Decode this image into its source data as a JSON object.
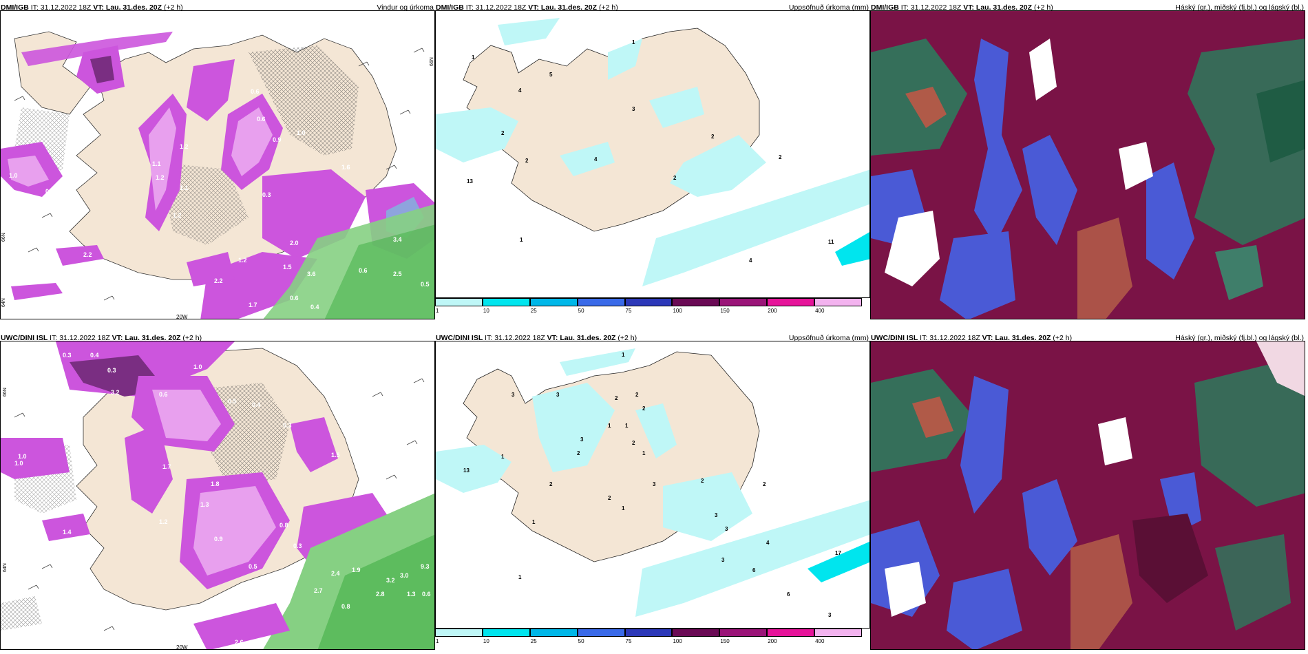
{
  "panels": [
    {
      "id": "top-left",
      "model": "DMI/IGB",
      "it_label": "IT:",
      "it_value": "31.12.2022 18Z",
      "vt_label": "VT: Lau. 31.des. 20Z",
      "lead": "(+2 h)",
      "product": "Vindur og úrkoma",
      "value_labels": [
        "1.0",
        "0.6",
        "1.6",
        "0.6",
        "1.0",
        "0.9",
        "1.2",
        "1.2",
        "1.1",
        "1.6",
        "1.1",
        "1.2",
        "0.3",
        "2.0",
        "3.4",
        "1.2",
        "1.5",
        "3.6",
        "2.5",
        "1.7",
        "2.2",
        "0.6",
        "0.4",
        "1.2",
        "0.5",
        "0.2",
        "1.0",
        "2.4",
        "2.2",
        "0.6"
      ],
      "lon_label": "20W",
      "lat_labels": [
        "66N",
        "66N",
        "64N"
      ]
    },
    {
      "id": "top-middle",
      "model": "DMI/IGB",
      "it_label": "IT:",
      "it_value": "31.12.2022 18Z",
      "vt_label": "VT: Lau. 31.des. 20Z",
      "lead": "(+2 h)",
      "product": "Uppsöfnuð úrkoma (mm)",
      "value_labels": [
        "1",
        "1",
        "4",
        "5",
        "3",
        "2",
        "2",
        "13",
        "4",
        "2",
        "2",
        "2",
        "11",
        "4",
        "1"
      ]
    },
    {
      "id": "top-right",
      "model": "DMI/IGB",
      "it_label": "IT:",
      "it_value": "31.12.2022 18Z",
      "vt_label": "VT: Lau. 31.des. 20Z",
      "lead": "(+2 h)",
      "product": "Háský (gr.), miðský (fj.bl.) og lágský (bl.)"
    },
    {
      "id": "bottom-left",
      "model": "UWC/DINI ISL",
      "it_label": "IT:",
      "it_value": "31.12.2022 18Z",
      "vt_label": "VT: Lau. 31.des. 20Z",
      "lead": "(+2 h)",
      "product": "",
      "value_labels": [
        "0.3",
        "0.4",
        "1.0",
        "0.3",
        "3.2",
        "0.6",
        "0.5",
        "0.4",
        "0.7",
        "0.3",
        "1.5",
        "1.8",
        "1.3",
        "1.0",
        "1.7",
        "1.2",
        "0.8",
        "0.9",
        "0.3",
        "1.9",
        "2.4",
        "2.7",
        "2.3",
        "2.8",
        "3.2",
        "3.0",
        "9.3",
        "0.6",
        "1.3",
        "2.6",
        "1.0",
        "1.4",
        "0.8",
        "0.5"
      ],
      "lon_label": "20W",
      "lat_labels": [
        "66N",
        "64N"
      ]
    },
    {
      "id": "bottom-middle",
      "model": "UWC/DINI ISL",
      "it_label": "IT:",
      "it_value": "31.12.2022 18Z",
      "vt_label": "VT: Lau. 31.des. 20Z",
      "lead": "(+2 h)",
      "product": "Uppsöfnuð úrkoma (mm)",
      "value_labels": [
        "1",
        "3",
        "3",
        "2",
        "2",
        "2",
        "1",
        "1",
        "3",
        "2",
        "2",
        "1",
        "13",
        "1",
        "2",
        "3",
        "2",
        "1",
        "2",
        "3",
        "1",
        "2",
        "3",
        "17",
        "4",
        "3",
        "6",
        "6",
        "3",
        "1"
      ]
    },
    {
      "id": "bottom-right",
      "model": "UWC/DINI ISL",
      "it_label": "IT:",
      "it_value": "31.12.2022 18Z",
      "vt_label": "VT: Lau. 31.des. 20Z",
      "lead": "(+2 h)",
      "product": "Háský (gr.), miðský (fj.bl.) og lágský (bl.)"
    }
  ],
  "colorbar": {
    "ticks": [
      "1",
      "10",
      "25",
      "50",
      "75",
      "100",
      "150",
      "200",
      "400"
    ],
    "colors": [
      "#bff7f7",
      "#00e5ee",
      "#00b7e8",
      "#3a6ae8",
      "#2c38b8",
      "#6a0a55",
      "#9a1478",
      "#e6149a",
      "#f3b3ef"
    ]
  },
  "legend_colors": {
    "land": "#f4e6d5",
    "precip_light": "#e8a0ee",
    "precip_mid": "#cc55dd",
    "precip_heavy": "#7a2e82",
    "snow_green": "#86d083",
    "accum_light": "#bff7f7",
    "cloud_high": "#7a1346",
    "cloud_mid": "#4a5ad6",
    "cloud_low": "#2d7a5c"
  }
}
